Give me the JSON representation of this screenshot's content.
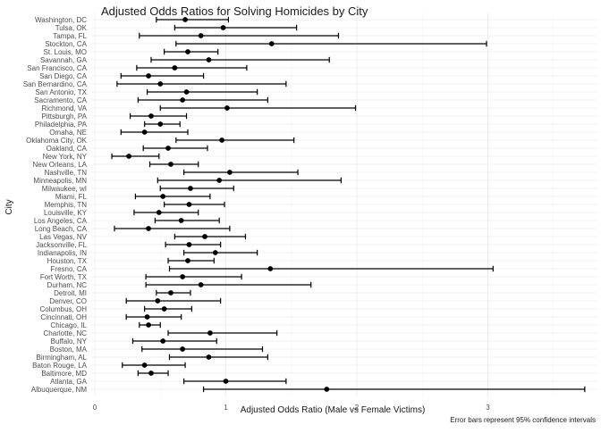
{
  "chart_data": {
    "type": "scatter",
    "title": "Adjusted Odds Ratios for Solving Homicides by City",
    "xlabel": "Adjusted Odds Ratio (Male vs Female Victims)",
    "ylabel": "City",
    "caption": "Error bars represent 95% confidence intervals",
    "xlim": [
      0,
      3.7
    ],
    "x_ticks": [
      0,
      1,
      2,
      3
    ],
    "grid": true,
    "legend": "none",
    "point_color": "#000000",
    "categories": [
      "Washington, DC",
      "Tulsa, OK",
      "Tampa, FL",
      "Stockton, CA",
      "St. Louis, MO",
      "Savannah, GA",
      "San Francisco, CA",
      "San Diego, CA",
      "San Bernardino, CA",
      "San Antonio, TX",
      "Sacramento, CA",
      "Richmond, VA",
      "Pittsburgh, PA",
      "Philadelphia, PA",
      "Omaha, NE",
      "Oklahoma City, OK",
      "Oakland, CA",
      "New York, NY",
      "New Orleans, LA",
      "Nashville, TN",
      "Minneapolis, MN",
      "Milwaukee, wI",
      "Miami, FL",
      "Memphis, TN",
      "Louisville, KY",
      "Los Angeles, CA",
      "Long Beach, CA",
      "Las Vegas, NV",
      "Jacksonville, FL",
      "Indianapolis, IN",
      "Houston, TX",
      "Fresno, CA",
      "Fort Worth, TX",
      "Durham, NC",
      "Detroit, MI",
      "Denver, CO",
      "Columbus, OH",
      "Cincinnati, OH",
      "Chicago, IL",
      "Charlotte, NC",
      "Buffalo, NY",
      "Boston, MA",
      "Birmingham, AL",
      "Baton Rouge, LA",
      "Baltimore, MD",
      "Atlanta, GA",
      "Albuquerque, NM"
    ],
    "estimates": [
      0.69,
      0.98,
      0.81,
      1.35,
      0.71,
      0.87,
      0.61,
      0.41,
      0.5,
      0.7,
      0.67,
      1.01,
      0.43,
      0.5,
      0.38,
      0.97,
      0.56,
      0.26,
      0.58,
      1.03,
      0.95,
      0.73,
      0.52,
      0.72,
      0.49,
      0.66,
      0.41,
      0.84,
      0.72,
      0.92,
      0.71,
      1.34,
      0.67,
      0.81,
      0.58,
      0.48,
      0.53,
      0.4,
      0.41,
      0.88,
      0.52,
      0.67,
      0.87,
      0.38,
      0.43,
      1.0,
      1.77
    ],
    "ci_low": [
      0.47,
      0.61,
      0.34,
      0.62,
      0.53,
      0.43,
      0.32,
      0.2,
      0.17,
      0.4,
      0.33,
      0.5,
      0.27,
      0.38,
      0.2,
      0.62,
      0.37,
      0.13,
      0.42,
      0.68,
      0.48,
      0.5,
      0.31,
      0.53,
      0.3,
      0.46,
      0.15,
      0.61,
      0.54,
      0.68,
      0.56,
      0.57,
      0.39,
      0.39,
      0.47,
      0.24,
      0.38,
      0.24,
      0.34,
      0.56,
      0.29,
      0.36,
      0.57,
      0.21,
      0.33,
      0.68,
      0.83
    ],
    "ci_high": [
      1.02,
      1.54,
      1.86,
      2.99,
      0.94,
      1.79,
      1.16,
      0.83,
      1.46,
      1.24,
      1.32,
      1.99,
      0.7,
      0.65,
      0.71,
      1.52,
      0.86,
      0.49,
      0.79,
      1.55,
      1.88,
      1.06,
      0.88,
      0.99,
      0.79,
      0.95,
      1.03,
      1.15,
      0.96,
      1.24,
      0.91,
      3.04,
      1.12,
      1.65,
      0.73,
      0.96,
      0.74,
      0.66,
      0.5,
      1.39,
      0.93,
      1.28,
      1.32,
      0.69,
      0.56,
      1.46,
      3.74
    ]
  }
}
